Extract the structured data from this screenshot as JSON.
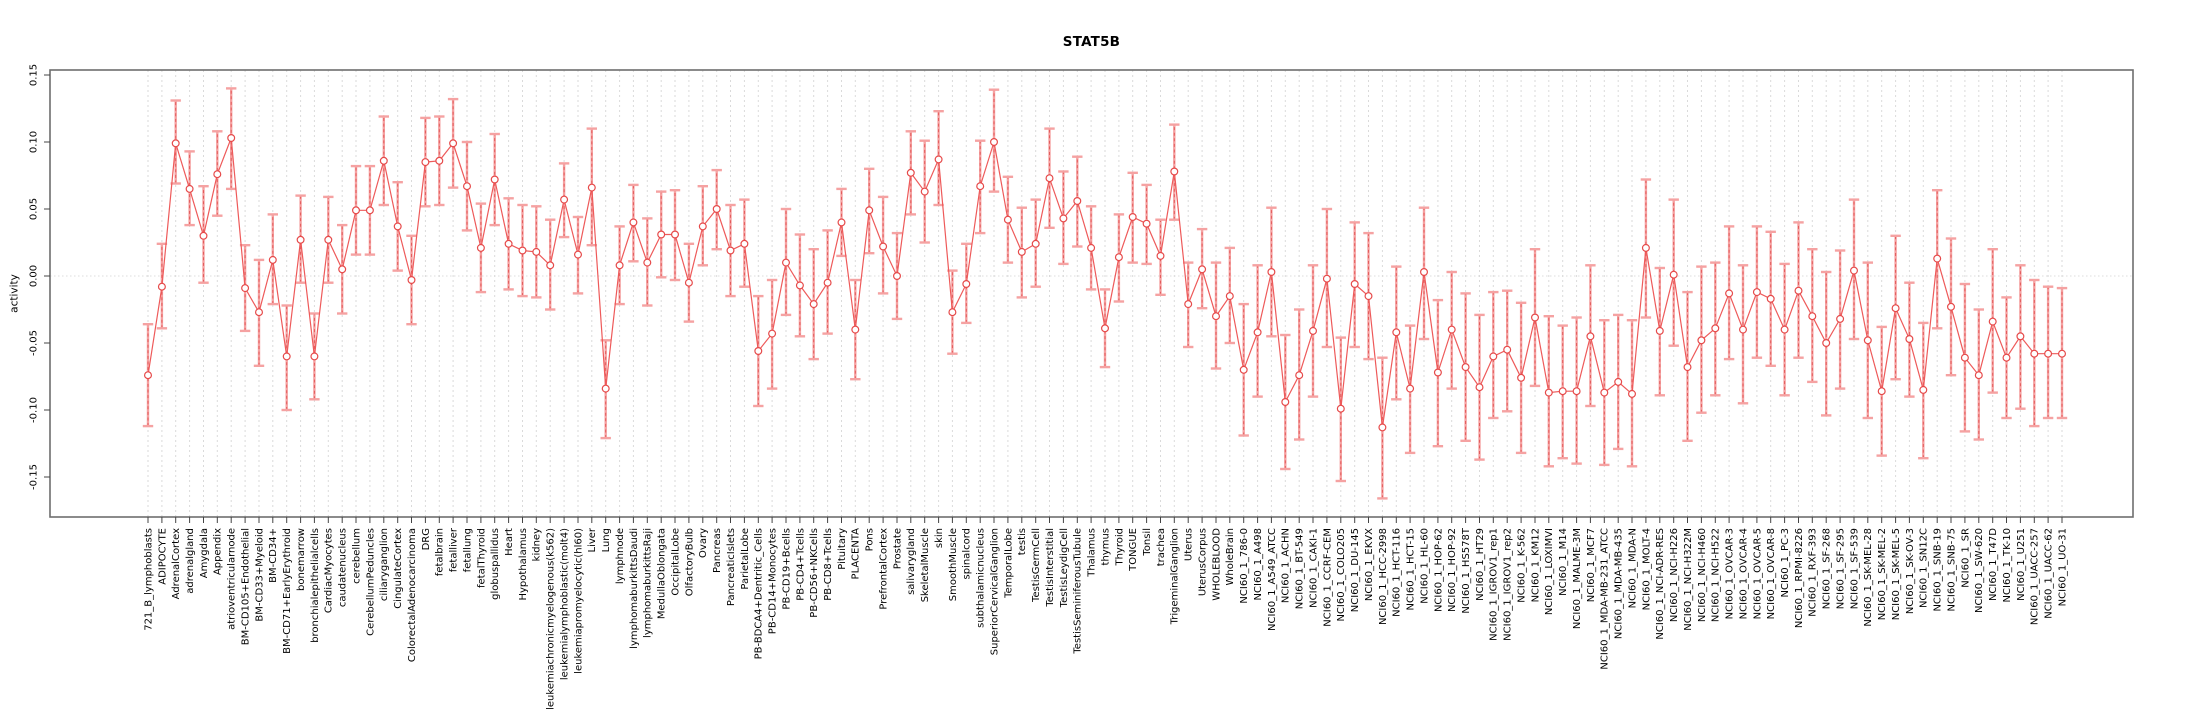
{
  "title": "STAT5B",
  "chart_data": {
    "type": "line",
    "title": "STAT5B",
    "xlabel": "",
    "ylabel": "activity",
    "ylim": [
      -0.18,
      0.155
    ],
    "yticks": [
      0.15,
      0.1,
      0.05,
      0.0,
      -0.05,
      -0.1,
      -0.15
    ],
    "grid": "vertical-dashed-per-category, dotted zero line",
    "legend": "none",
    "marker": "open-circle",
    "error_bars": true,
    "colors": {
      "line": "#ee5a5a",
      "marker": "#e64a4a",
      "error_bar": "#f5a2a2",
      "error_bar_dash": "#e25555",
      "gridline": "#dadada",
      "zero_line": "#dcdcdc",
      "box": "#6e6e6e",
      "tick": "#444444",
      "text": "#000000"
    },
    "categories": [
      "721_B_lymphoblasts",
      "ADIPOCYTE",
      "AdrenalCortex",
      "adrenalgland",
      "Amygdala",
      "Appendix",
      "atrioventricularnode",
      "BM-CD105+Endothelial",
      "BM-CD33+Myeloid",
      "BM-CD34+",
      "BM-CD71+EarlyErythroid",
      "bonemarrow",
      "bronchialepithelialcells",
      "CardiacMyocytes",
      "caudatenucleus",
      "cerebellum",
      "CerebellumPeduncles",
      "ciliaryganglion",
      "CingulateCortex",
      "ColorectalAdenocarcinoma",
      "DRG",
      "fetalbrain",
      "fetalliver",
      "fetallung",
      "fetalThyroid",
      "globuspallidus",
      "Heart",
      "Hypothalamus",
      "kidney",
      "leukemiachronicmyelogenous(k562)",
      "leukemialymphoblastic(molt4)",
      "leukemiapromyelocytic(hl60)",
      "Liver",
      "Lung",
      "lymphnode",
      "lymphomaburkittsDaudi",
      "lymphomaburkittsRaji",
      "MedullaOblongata",
      "OccipitalLobe",
      "OlfactoryBulb",
      "Ovary",
      "Pancreas",
      "PancreaticIslets",
      "ParietalLobe",
      "PB-BDCA4+Dentritic_Cells",
      "PB-CD14+Monocytes",
      "PB-CD19+Bcells",
      "PB-CD4+Tcells",
      "PB-CD56+NKCells",
      "PB-CD8+Tcells",
      "Pituitary",
      "PLACENTA",
      "Pons",
      "PrefrontalCortex",
      "Prostate",
      "salivarygland",
      "SkeletalMuscle",
      "skin",
      "SmoothMuscle",
      "spinalcord",
      "subthalamicnucleus",
      "SuperiorCervicalGanglion",
      "TemporalLobe",
      "testis",
      "TestisGermCell",
      "TestisInterstitial",
      "TestisLeydigCell",
      "TestisSeminiferousTubule",
      "Thalamus",
      "thymus",
      "Thyroid",
      "TONGUE",
      "Tonsil",
      "trachea",
      "TrigeminalGanglion",
      "Uterus",
      "UterusCorpus",
      "WHOLEBLOOD",
      "WholeBrain",
      "NCI60_1_786-0",
      "NCI60_1_A498",
      "NCI60_1_A549_ATCC",
      "NCI60_1_ACHN",
      "NCI60_1_BT-549",
      "NCI60_1_CAKI-1",
      "NCI60_1_CCRF-CEM",
      "NCI60_1_COLO205",
      "NCI60_1_DU-145",
      "NCI60_1_EKVX",
      "NCI60_1_HCC-2998",
      "NCI60_1_HCT-116",
      "NCI60_1_HCT-15",
      "NCI60_1_HL-60",
      "NCI60_1_HOP-62",
      "NCI60_1_HOP-92",
      "NCI60_1_HS578T",
      "NCI60_1_HT29",
      "NCI60_1_IGROV1_rep1",
      "NCI60_1_IGROV1_rep2",
      "NCI60_1_K-562",
      "NCI60_1_KM12",
      "NCI60_1_LOXIMVI",
      "NCI60_1_M14",
      "NCI60_1_MALME-3M",
      "NCI60_1_MCF7",
      "NCI60_1_MDA-MB-231_ATCC",
      "NCI60_1_MDA-MB-435",
      "NCI60_1_MDA-N",
      "NCI60_1_MOLT-4",
      "NCI60_1_NCI-ADR-RES",
      "NCI60_1_NCI-H226",
      "NCI60_1_NCI-H322M",
      "NCI60_1_NCI-H460",
      "NCI60_1_NCI-H522",
      "NCI60_1_OVCAR-3",
      "NCI60_1_OVCAR-4",
      "NCI60_1_OVCAR-5",
      "NCI60_1_OVCAR-8",
      "NCI60_1_PC-3",
      "NCI60_1_RPMI-8226",
      "NCI60_1_RXF-393",
      "NCI60_1_SF-268",
      "NCI60_1_SF-295",
      "NCI60_1_SF-539",
      "NCI60_1_SK-MEL-28",
      "NCI60_1_SK-MEL-2",
      "NCI60_1_SK-MEL-5",
      "NCI60_1_SK-OV-3",
      "NCI60_1_SN12C",
      "NCI60_1_SNB-19",
      "NCI60_1_SNB-75",
      "NCI60_1_SR",
      "NCI60_1_SW-620",
      "NCI60_1_T47D",
      "NCI60_1_TK-10",
      "NCI60_1_U251",
      "NCI60_1_UACC-257",
      "NCI60_1_UACC-62",
      "NCI60_1_UO-31"
    ],
    "series": [
      {
        "name": "activity",
        "values": [
          -0.074,
          -0.008,
          0.099,
          0.065,
          0.03,
          0.076,
          0.103,
          -0.009,
          -0.027,
          0.012,
          -0.06,
          0.027,
          -0.06,
          0.027,
          0.005,
          0.049,
          0.049,
          0.086,
          0.037,
          -0.003,
          0.085,
          0.086,
          0.099,
          0.067,
          0.021,
          0.072,
          0.024,
          0.019,
          0.018,
          0.008,
          0.057,
          0.016,
          0.066,
          -0.084,
          0.008,
          0.04,
          0.01,
          0.031,
          0.031,
          -0.005,
          0.037,
          0.05,
          0.019,
          0.024,
          -0.056,
          -0.043,
          0.01,
          -0.007,
          -0.021,
          -0.005,
          0.04,
          -0.04,
          0.049,
          0.022,
          0.0,
          0.077,
          0.063,
          0.087,
          -0.027,
          -0.006,
          0.067,
          0.1,
          0.042,
          0.018,
          0.024,
          0.073,
          0.043,
          0.056,
          0.021,
          -0.039,
          0.014,
          0.044,
          0.039,
          0.015,
          0.078,
          -0.021,
          0.005,
          -0.03,
          -0.015,
          -0.07,
          -0.042,
          0.003,
          -0.094,
          -0.074,
          -0.041,
          -0.002,
          -0.099,
          -0.006,
          -0.015,
          -0.113,
          -0.042,
          -0.084,
          0.003,
          -0.072,
          -0.04,
          -0.068,
          -0.083,
          -0.06,
          -0.055,
          -0.076,
          -0.031,
          -0.087,
          -0.086,
          -0.086,
          -0.045,
          -0.087,
          -0.079,
          -0.088,
          0.021,
          -0.041,
          0.001,
          -0.068,
          -0.048,
          -0.039,
          -0.013,
          -0.04,
          -0.012,
          -0.017,
          -0.04,
          -0.011,
          -0.03,
          -0.05,
          -0.032,
          0.004,
          -0.048,
          -0.086,
          -0.024,
          -0.047,
          -0.085,
          0.013,
          -0.023,
          -0.061,
          -0.074,
          -0.034,
          -0.061,
          -0.045,
          -0.058,
          -0.058,
          -0.058
        ],
        "lower": [
          -0.112,
          -0.039,
          0.069,
          0.038,
          -0.005,
          0.045,
          0.065,
          -0.041,
          -0.067,
          -0.021,
          -0.1,
          -0.005,
          -0.092,
          -0.005,
          -0.028,
          0.016,
          0.016,
          0.053,
          0.004,
          -0.036,
          0.052,
          0.053,
          0.066,
          0.034,
          -0.012,
          0.038,
          -0.01,
          -0.015,
          -0.016,
          -0.025,
          0.029,
          -0.013,
          0.023,
          -0.121,
          -0.021,
          0.011,
          -0.022,
          -0.001,
          -0.003,
          -0.034,
          0.008,
          0.02,
          -0.015,
          -0.008,
          -0.097,
          -0.084,
          -0.029,
          -0.045,
          -0.062,
          -0.043,
          0.015,
          -0.077,
          0.017,
          -0.013,
          -0.032,
          0.046,
          0.025,
          0.053,
          -0.058,
          -0.035,
          0.032,
          0.063,
          0.01,
          -0.016,
          -0.008,
          0.036,
          0.009,
          0.022,
          -0.01,
          -0.068,
          -0.019,
          0.01,
          0.009,
          -0.014,
          0.042,
          -0.053,
          -0.024,
          -0.069,
          -0.05,
          -0.119,
          -0.09,
          -0.045,
          -0.144,
          -0.122,
          -0.09,
          -0.053,
          -0.153,
          -0.053,
          -0.062,
          -0.166,
          -0.092,
          -0.132,
          -0.047,
          -0.127,
          -0.084,
          -0.123,
          -0.137,
          -0.106,
          -0.101,
          -0.132,
          -0.082,
          -0.142,
          -0.136,
          -0.14,
          -0.097,
          -0.141,
          -0.129,
          -0.142,
          -0.031,
          -0.089,
          -0.052,
          -0.123,
          -0.102,
          -0.089,
          -0.062,
          -0.095,
          -0.061,
          -0.067,
          -0.089,
          -0.061,
          -0.079,
          -0.104,
          -0.084,
          -0.047,
          -0.106,
          -0.134,
          -0.077,
          -0.09,
          -0.136,
          -0.039,
          -0.074,
          -0.116,
          -0.122,
          -0.087,
          -0.106,
          -0.099,
          -0.112,
          -0.106,
          -0.106
        ],
        "upper": [
          -0.036,
          0.024,
          0.131,
          0.093,
          0.067,
          0.108,
          0.14,
          0.023,
          0.012,
          0.046,
          -0.022,
          0.06,
          -0.028,
          0.059,
          0.038,
          0.082,
          0.082,
          0.119,
          0.07,
          0.03,
          0.118,
          0.119,
          0.132,
          0.1,
          0.054,
          0.106,
          0.058,
          0.053,
          0.052,
          0.042,
          0.084,
          0.044,
          0.11,
          -0.048,
          0.037,
          0.068,
          0.043,
          0.063,
          0.064,
          0.024,
          0.067,
          0.079,
          0.053,
          0.057,
          -0.015,
          -0.003,
          0.05,
          0.031,
          0.02,
          0.034,
          0.065,
          -0.003,
          0.08,
          0.059,
          0.032,
          0.108,
          0.101,
          0.123,
          0.004,
          0.024,
          0.101,
          0.139,
          0.074,
          0.051,
          0.057,
          0.11,
          0.078,
          0.089,
          0.052,
          -0.01,
          0.046,
          0.077,
          0.068,
          0.042,
          0.113,
          0.01,
          0.035,
          0.01,
          0.021,
          -0.021,
          0.008,
          0.051,
          -0.044,
          -0.025,
          0.008,
          0.05,
          -0.046,
          0.04,
          0.032,
          -0.061,
          0.007,
          -0.037,
          0.051,
          -0.018,
          0.003,
          -0.013,
          -0.029,
          -0.012,
          -0.011,
          -0.02,
          0.02,
          -0.03,
          -0.037,
          -0.031,
          0.008,
          -0.033,
          -0.029,
          -0.033,
          0.072,
          0.006,
          0.057,
          -0.012,
          0.007,
          0.01,
          0.037,
          0.008,
          0.037,
          0.033,
          0.009,
          0.04,
          0.02,
          0.003,
          0.019,
          0.057,
          0.01,
          -0.038,
          0.03,
          -0.005,
          -0.035,
          0.064,
          0.028,
          -0.006,
          -0.025,
          0.02,
          -0.016,
          0.008,
          -0.003,
          -0.008,
          -0.009
        ]
      }
    ]
  }
}
